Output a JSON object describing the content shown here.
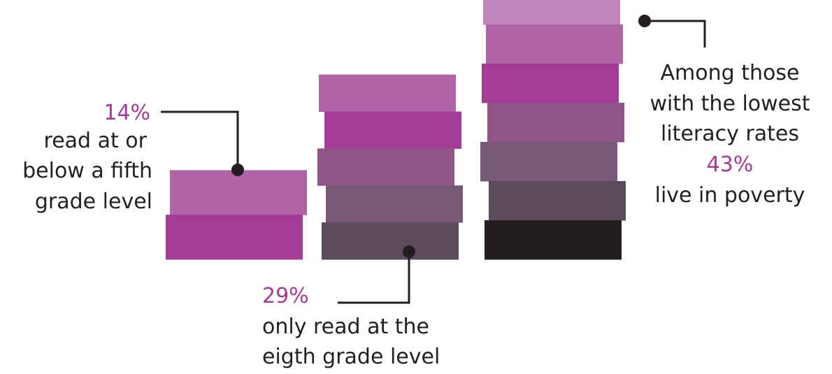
{
  "chart_data": {
    "type": "bar",
    "categories": [
      "read at or below a fifth grade level",
      "only read at the eigth grade level",
      "live in poverty"
    ],
    "values": [
      14,
      29,
      43
    ],
    "title": "",
    "xlabel": "",
    "ylabel": "",
    "stacks": [
      {
        "value_label": "14%",
        "text_lines": [
          "read at or",
          "below a fifth",
          "grade level"
        ],
        "block_colors": [
          "#B064A8",
          "#A33C94"
        ]
      },
      {
        "value_label": "29%",
        "text_lines": [
          "only read at the",
          "eigth grade level"
        ],
        "block_colors": [
          "#B064A8",
          "#A33C94",
          "#8E5586",
          "#775877",
          "#5B4B5C"
        ]
      },
      {
        "value_label": "43%",
        "text_lines": [
          "Among those",
          "with the lowest",
          "literacy rates",
          "43%",
          "live in poverty"
        ],
        "block_colors": [
          "#C086BC",
          "#B064A8",
          "#A33C94",
          "#8E5586",
          "#775877",
          "#5B4B5C",
          "#231F20"
        ]
      }
    ],
    "colors": {
      "accent": "#A33C94",
      "text": "#231F20",
      "line": "#231F20"
    }
  }
}
